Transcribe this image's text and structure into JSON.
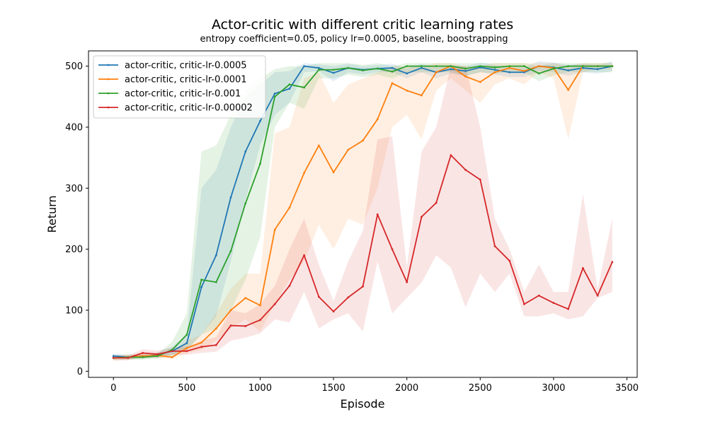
{
  "chart_data": {
    "type": "line",
    "title": "Actor-critic with different critic learning rates",
    "subtitle": "entropy coefficient=0.05, policy lr=0.0005, baseline, boostrapping",
    "xlabel": "Episode",
    "ylabel": "Return",
    "xlim": [
      -170,
      3570
    ],
    "ylim": [
      -10,
      525
    ],
    "xticks": [
      0,
      500,
      1000,
      1500,
      2000,
      2500,
      3000,
      3500
    ],
    "yticks": [
      0,
      100,
      200,
      300,
      400,
      500
    ],
    "grid": false,
    "legend_position": "upper-left",
    "x": [
      0,
      100,
      200,
      300,
      400,
      500,
      600,
      700,
      800,
      900,
      1000,
      1100,
      1200,
      1300,
      1400,
      1500,
      1600,
      1700,
      1800,
      1900,
      2000,
      2100,
      2200,
      2300,
      2400,
      2500,
      2600,
      2700,
      2800,
      2900,
      3000,
      3100,
      3200,
      3300,
      3400
    ],
    "series": [
      {
        "name": "actor-critic, critic-lr-0.0005",
        "color": "#1f77b4",
        "values": [
          25,
          23,
          24,
          27,
          33,
          46,
          138,
          190,
          285,
          360,
          410,
          455,
          463,
          500,
          497,
          489,
          497,
          494,
          496,
          497,
          488,
          497,
          490,
          495,
          492,
          498,
          494,
          490,
          490,
          500,
          498,
          493,
          497,
          495,
          500
        ],
        "lower": [
          21,
          20,
          21,
          23,
          27,
          35,
          60,
          90,
          180,
          280,
          370,
          420,
          440,
          490,
          492,
          475,
          490,
          486,
          490,
          490,
          480,
          490,
          480,
          488,
          484,
          490,
          486,
          482,
          482,
          492,
          490,
          484,
          490,
          488,
          492
        ],
        "upper": [
          29,
          27,
          28,
          31,
          40,
          60,
          300,
          330,
          400,
          450,
          470,
          490,
          492,
          505,
          503,
          500,
          504,
          500,
          502,
          504,
          496,
          504,
          498,
          502,
          500,
          506,
          502,
          498,
          498,
          508,
          506,
          502,
          504,
          502,
          508
        ]
      },
      {
        "name": "actor-critic, critic-lr-0.0001",
        "color": "#ff7f0e",
        "values": [
          22,
          23,
          25,
          26,
          23,
          38,
          47,
          70,
          100,
          120,
          108,
          232,
          268,
          325,
          370,
          326,
          363,
          378,
          413,
          472,
          460,
          452,
          490,
          500,
          483,
          474,
          490,
          497,
          492,
          500,
          497,
          461,
          500,
          500,
          500
        ],
        "lower": [
          18,
          19,
          21,
          22,
          20,
          30,
          35,
          50,
          70,
          85,
          65,
          110,
          150,
          180,
          240,
          200,
          250,
          240,
          300,
          400,
          420,
          380,
          460,
          480,
          460,
          440,
          470,
          480,
          470,
          490,
          480,
          380,
          490,
          495,
          495
        ],
        "upper": [
          26,
          27,
          29,
          30,
          28,
          50,
          60,
          95,
          135,
          160,
          160,
          390,
          400,
          480,
          490,
          440,
          470,
          480,
          490,
          500,
          500,
          500,
          505,
          505,
          500,
          500,
          505,
          505,
          505,
          505,
          505,
          500,
          505,
          505,
          505
        ]
      },
      {
        "name": "actor-critic, critic-lr-0.001",
        "color": "#2ca02c",
        "values": [
          22,
          23,
          23,
          25,
          35,
          60,
          150,
          146,
          197,
          275,
          340,
          450,
          470,
          465,
          494,
          494,
          497,
          493,
          496,
          491,
          500,
          500,
          500,
          500,
          496,
          500,
          498,
          500,
          500,
          488,
          496,
          500,
          500,
          500,
          500
        ],
        "lower": [
          18,
          19,
          19,
          21,
          25,
          35,
          60,
          70,
          100,
          150,
          220,
          400,
          440,
          430,
          480,
          480,
          486,
          482,
          486,
          480,
          490,
          490,
          490,
          490,
          484,
          490,
          488,
          490,
          490,
          475,
          485,
          490,
          490,
          490,
          490
        ],
        "upper": [
          26,
          27,
          27,
          29,
          48,
          95,
          360,
          370,
          420,
          460,
          480,
          495,
          500,
          500,
          505,
          505,
          505,
          502,
          505,
          500,
          505,
          505,
          505,
          505,
          505,
          505,
          505,
          505,
          505,
          500,
          505,
          505,
          505,
          505,
          505
        ]
      },
      {
        "name": "actor-critic, critic-lr-0.00002",
        "color": "#d62728",
        "values": [
          22,
          22,
          30,
          28,
          33,
          33,
          40,
          43,
          75,
          74,
          84,
          110,
          140,
          190,
          122,
          98,
          121,
          139,
          257,
          200,
          146,
          253,
          276,
          354,
          330,
          314,
          205,
          181,
          110,
          124,
          112,
          102,
          169,
          124,
          179
        ],
        "lower": [
          18,
          18,
          24,
          22,
          27,
          27,
          30,
          32,
          50,
          55,
          62,
          85,
          80,
          130,
          70,
          85,
          95,
          65,
          180,
          95,
          120,
          145,
          190,
          170,
          105,
          160,
          130,
          160,
          90,
          90,
          95,
          85,
          90,
          120,
          130
        ],
        "upper": [
          26,
          26,
          36,
          34,
          39,
          40,
          50,
          56,
          100,
          95,
          110,
          140,
          200,
          250,
          175,
          115,
          180,
          230,
          380,
          385,
          170,
          360,
          400,
          500,
          500,
          400,
          250,
          200,
          130,
          175,
          130,
          130,
          290,
          135,
          250
        ]
      }
    ]
  }
}
